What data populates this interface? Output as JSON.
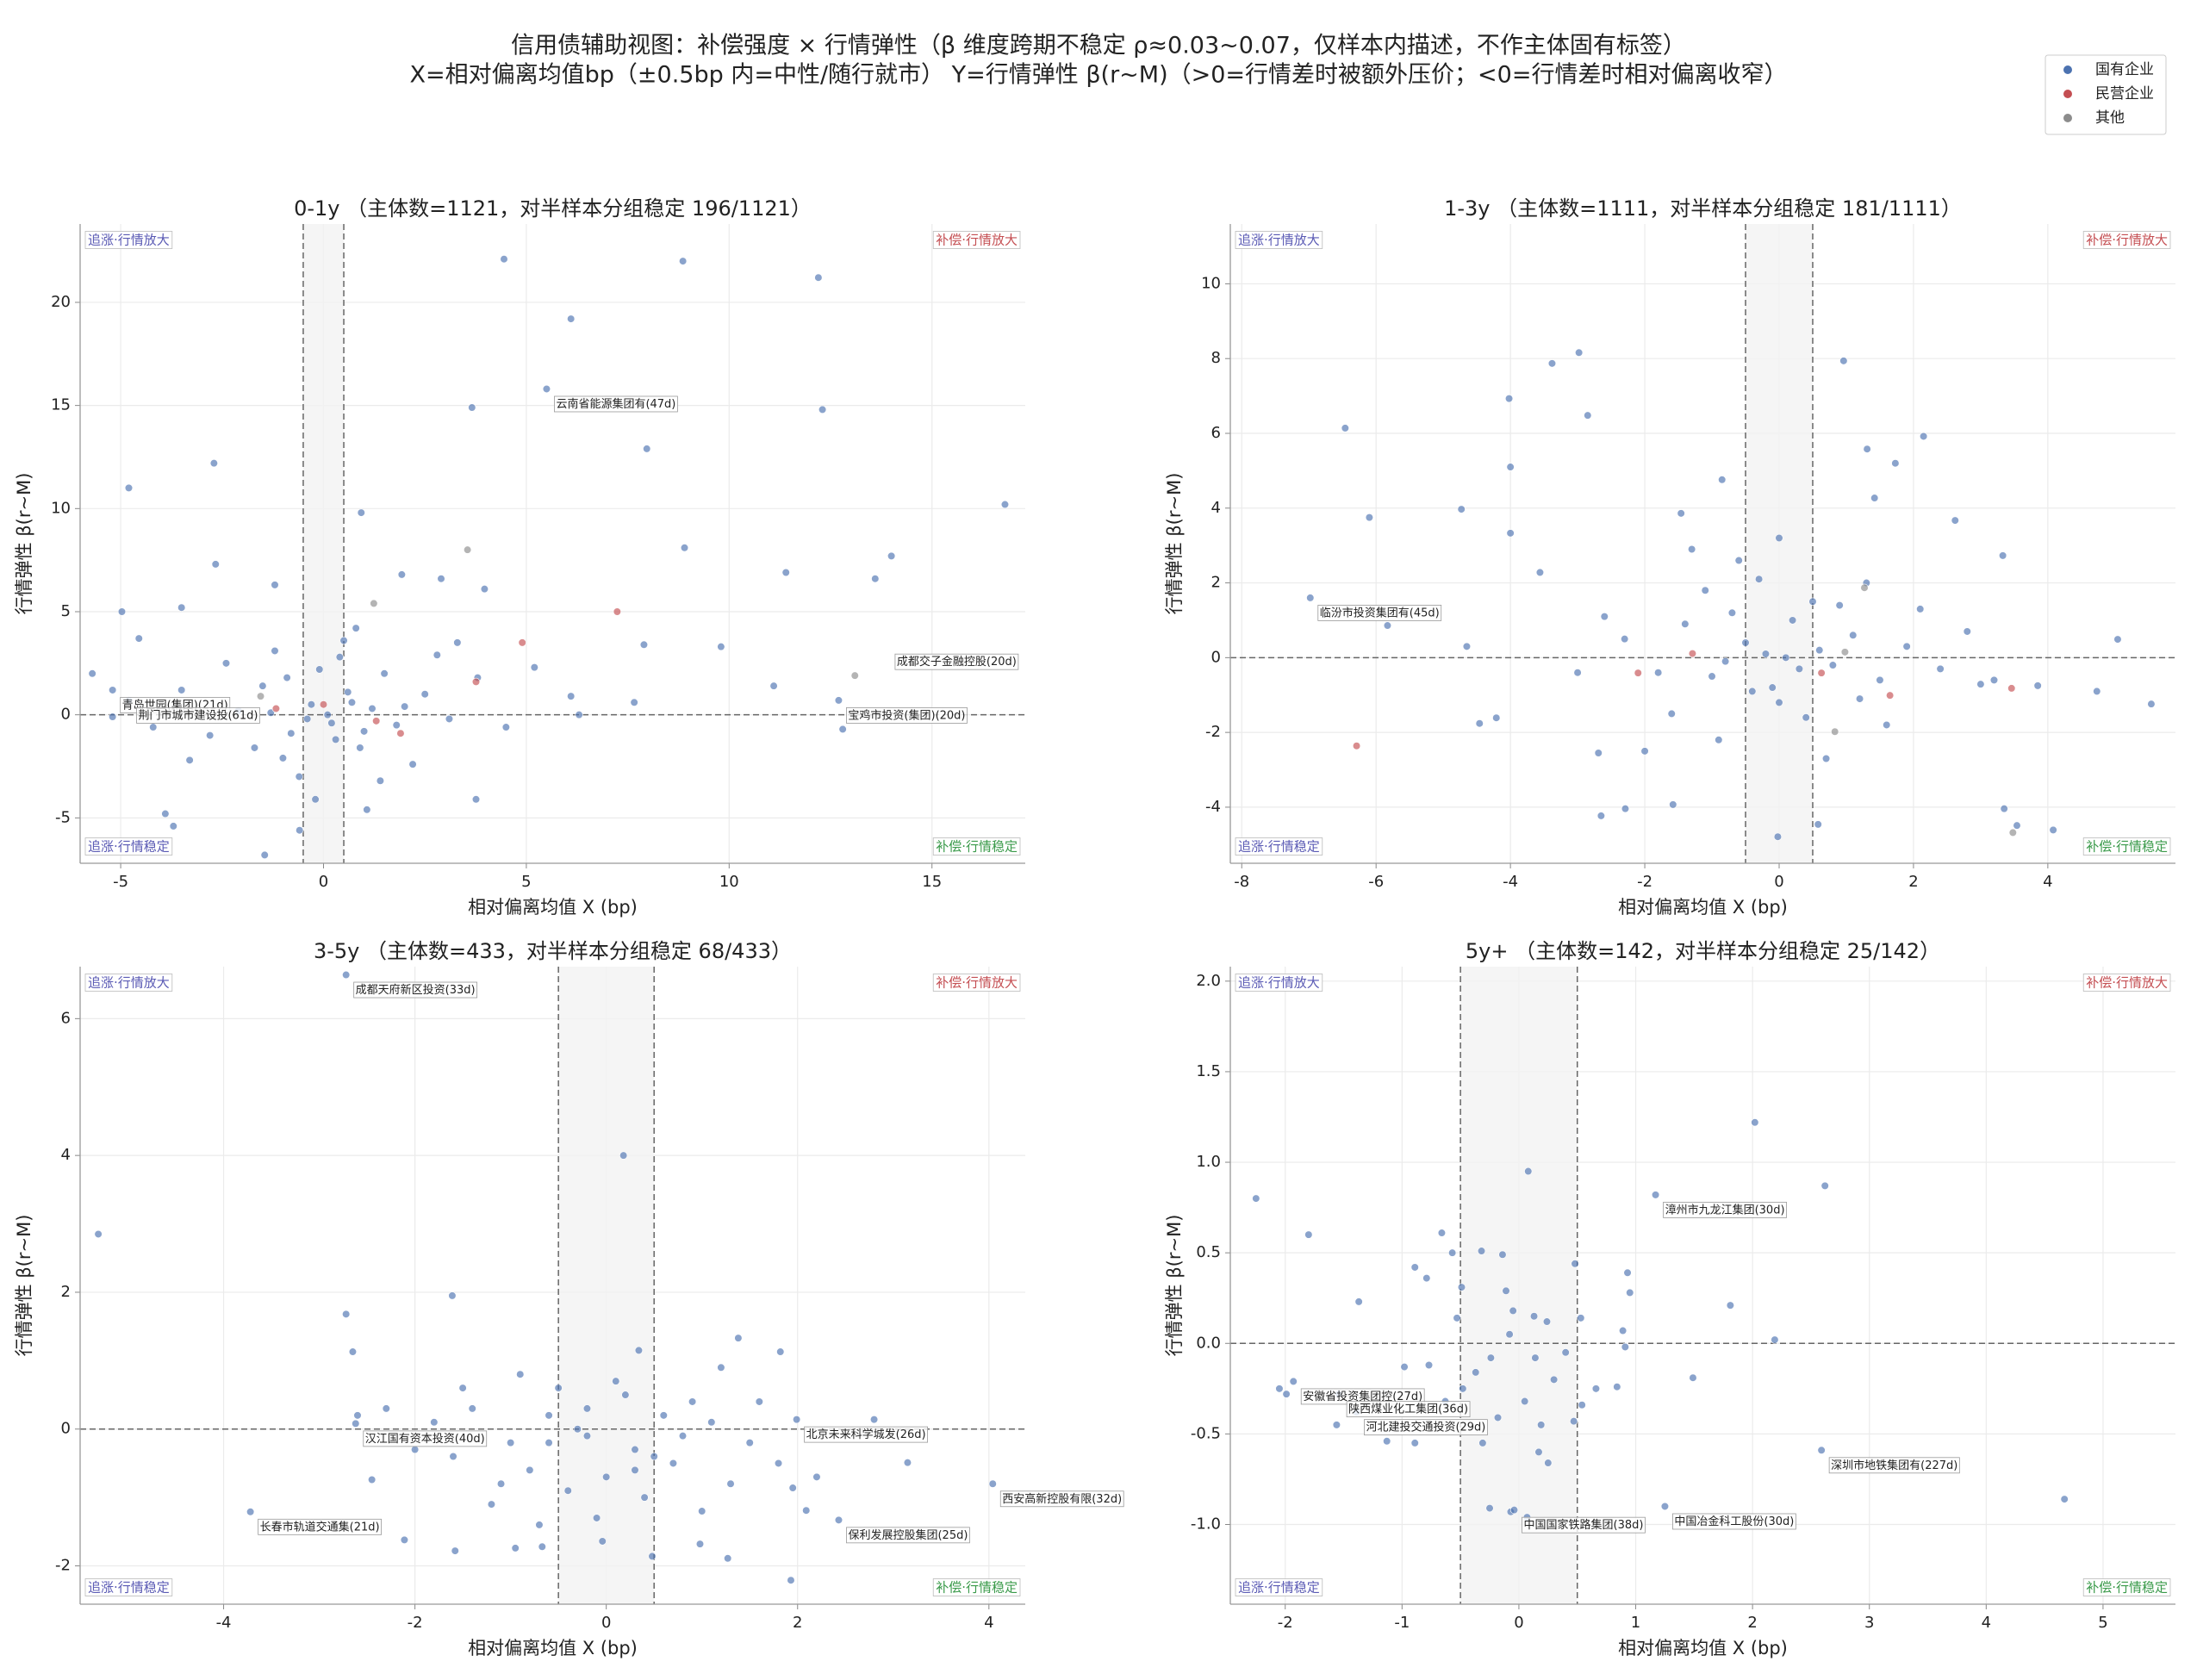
{
  "title": [
    "信用债辅助视图：补偿强度 × 行情弹性（β 维度跨期不稳定 ρ≈0.03~0.07，仅样本内描述，不作主体固有标签）",
    "X=相对偏离均值bp（±0.5bp 内=中性/随行就市） Y=行情弹性 β(r~M)（>0=行情差时被额外压价；<0=行情差时相对偏离收窄）"
  ],
  "legend": "upper right",
  "chart_data": [
    {
      "type": "scatter",
      "title": "0-1y （主体数=1121，对半样本分组稳定 196/1121）",
      "xlabel": "相对偏离均值 X (bp)",
      "ylabel": "行情弹性 β(r~M)",
      "xlim": [
        -6,
        17.3
      ],
      "ylim": [
        -7.2,
        23.8
      ],
      "xticks": [
        -5,
        0,
        5,
        10,
        15
      ],
      "yticks": [
        -5,
        0,
        5,
        10,
        15,
        20
      ],
      "grid": true,
      "neutral_band": [
        -0.5,
        0.5
      ],
      "hline": 0,
      "quadrant_labels": {
        "top_left": {
          "text": "追涨·行情放大",
          "color": "#5a5ab4"
        },
        "top_right": {
          "text": "补偿·行情放大",
          "color": "#c44e52"
        },
        "bottom_left": {
          "text": "追涨·行情稳定",
          "color": "#5a5ab4"
        },
        "bottom_right": {
          "text": "补偿·行情稳定",
          "color": "#3a9a4a"
        }
      },
      "series": [
        {
          "name": "国有企业",
          "color": "#4c72b0",
          "x": [
            4.45,
            8.86,
            12.2,
            6.1,
            12.3,
            3.66,
            7.97,
            -2.7,
            -4.8,
            16.8,
            0.93,
            8.9,
            14.0,
            13.6,
            11.4,
            -2.66,
            -1.2,
            2.9,
            -4.97,
            9.8,
            7.9,
            -3.5,
            -4.55,
            -5.7,
            -5.2,
            -3.3,
            -3.9,
            -3.7,
            -1.45,
            -0.59,
            1.07,
            3.76,
            6.3,
            7.66,
            6.1,
            11.1,
            12.8,
            1.93,
            3.97,
            5.5,
            12.7,
            -5.2,
            -4.8,
            -0.3,
            0.2,
            0.6,
            -0.8,
            1.2,
            -1.5,
            0.9,
            -0.1,
            1.8,
            -2.1,
            2.5,
            -1.0,
            0.4,
            3.1,
            -2.8,
            1.5,
            -0.6,
            2.2,
            0.1,
            -0.4,
            0.7,
            -1.3,
            1.0,
            -2.4,
            3.8,
            4.5,
            -3.5,
            0.3,
            -0.9,
            2.8,
            1.4,
            -1.7,
            0.5,
            -0.2,
            3.3,
            5.2,
            -4.2,
            0.8,
            -1.2,
            2.0
          ],
          "values": [
            22.1,
            22.0,
            21.2,
            19.2,
            14.8,
            14.9,
            12.9,
            12.2,
            11.0,
            10.2,
            9.8,
            8.1,
            7.7,
            6.6,
            6.9,
            7.3,
            6.3,
            6.6,
            5.0,
            3.3,
            3.4,
            5.2,
            3.7,
            2.0,
            -0.1,
            -2.2,
            -4.8,
            -5.4,
            -6.8,
            -5.6,
            -4.6,
            -4.1,
            0,
            0.6,
            0.9,
            1.4,
            -0.7,
            6.8,
            6.1,
            15.8,
            0.7,
            1.2,
            0.7,
            0.5,
            -0.4,
            1.1,
            -0.9,
            0.3,
            1.4,
            -1.6,
            2.2,
            -0.5,
            0.2,
            1.0,
            -2.1,
            2.8,
            -0.2,
            -1.0,
            2.0,
            -3.0,
            -2.4,
            0.0,
            -0.2,
            0.6,
            0.1,
            -0.8,
            2.5,
            1.8,
            -0.6,
            1.2,
            -1.2,
            1.8,
            2.9,
            -3.2,
            -1.6,
            3.6,
            -4.1,
            3.5,
            2.3,
            -0.6,
            4.2,
            3.1,
            0.4
          ]
        },
        {
          "name": "民营企业",
          "color": "#c44e52",
          "x": [
            7.24,
            4.9,
            3.76,
            0,
            1.9,
            1.3,
            -1.17
          ],
          "values": [
            5.0,
            3.5,
            1.6,
            0.5,
            -0.9,
            -0.3,
            0.3
          ]
        },
        {
          "name": "其他",
          "color": "#8c8c8c",
          "x": [
            13.1,
            3.55,
            -1.55,
            1.24
          ],
          "values": [
            1.9,
            8.0,
            0.9,
            5.4
          ]
        }
      ],
      "annotations": [
        {
          "text": "云南省能源集团有(47d)",
          "x": 5.5,
          "y": 15.8
        },
        {
          "text": "成都交子金融控股(20d)",
          "x": 13.9,
          "y": 3.3
        },
        {
          "text": "宝鸡市投资(集团)(20d)",
          "x": 12.7,
          "y": 0.7
        },
        {
          "text": "青岛世园(集团)(21d)",
          "x": -5.2,
          "y": 1.2
        },
        {
          "text": "荆门市城市建设投(61d)",
          "x": -4.8,
          "y": 0.7
        }
      ]
    },
    {
      "type": "scatter",
      "title": "1-3y （主体数=1111，对半样本分组稳定 181/1111）",
      "xlabel": "相对偏离均值 X (bp)",
      "ylabel": "行情弹性 β(r~M)",
      "xlim": [
        -8.17,
        5.9
      ],
      "ylim": [
        -5.5,
        11.6
      ],
      "xticks": [
        -8,
        -6,
        -4,
        -2,
        0,
        2,
        4
      ],
      "yticks": [
        -4,
        -2,
        0,
        2,
        4,
        6,
        8,
        10
      ],
      "grid": true,
      "neutral_band": [
        -0.5,
        0.5
      ],
      "hline": 0,
      "quadrant_labels": {
        "top_left": {
          "text": "追涨·行情放大",
          "color": "#5a5ab4"
        },
        "top_right": {
          "text": "补偿·行情放大",
          "color": "#c44e52"
        },
        "bottom_left": {
          "text": "追涨·行情稳定",
          "color": "#5a5ab4"
        },
        "bottom_right": {
          "text": "补偿·行情稳定",
          "color": "#3a9a4a"
        }
      },
      "series": [
        {
          "name": "国有企业",
          "color": "#4c72b0",
          "x": [
            -6.46,
            -6.1,
            -2.98,
            -3.38,
            -2.85,
            -4.02,
            -4.0,
            -4.0,
            -4.73,
            0.96,
            1.31,
            2.15,
            1.73,
            2.62,
            3.33,
            5.04,
            4.73,
            5.54,
            3.35,
            3.54,
            4.08,
            0.58,
            -0.02,
            -2.65,
            -2.29,
            -1.58,
            -2.69,
            -4.21,
            -4.46,
            -4.65,
            -5.83,
            -3.56,
            3.0,
            3.85,
            1.42,
            -0.85,
            -1.46,
            -6.98,
            -0.2,
            0.3,
            -0.5,
            0.6,
            -1.0,
            1.1,
            -0.1,
            0.8,
            -1.4,
            1.5,
            -0.7,
            0.2,
            -1.8,
            1.9,
            0.0,
            -0.4,
            0.5,
            -1.1,
            1.2,
            -2.3,
            2.4,
            -0.3,
            0.9,
            -1.6,
            1.6,
            -2.6,
            2.8,
            -0.9,
            0.4,
            -0.6,
            1.3,
            -1.3,
            0.1,
            -2.0,
            2.1,
            -0.8,
            0.7,
            -3.0,
            3.2,
            0.0
          ],
          "values": [
            6.14,
            3.75,
            8.16,
            7.87,
            6.48,
            6.93,
            5.1,
            3.33,
            3.97,
            7.94,
            5.58,
            5.92,
            5.2,
            3.67,
            2.73,
            0.49,
            -0.9,
            -1.24,
            -4.04,
            -4.49,
            -4.61,
            -4.46,
            -4.79,
            -4.23,
            -4.04,
            -3.93,
            -2.55,
            -1.61,
            -1.76,
            0.3,
            0.86,
            2.28,
            -0.71,
            -0.75,
            4.27,
            4.76,
            3.86,
            1.6,
            0.1,
            -0.3,
            0.4,
            0.2,
            -0.5,
            0.6,
            -0.8,
            -0.2,
            0.9,
            -0.6,
            1.2,
            1.0,
            -0.4,
            0.3,
            -1.2,
            -0.9,
            1.5,
            1.8,
            -1.1,
            0.5,
            -0.3,
            2.1,
            1.4,
            -1.5,
            -1.8,
            1.1,
            0.7,
            -2.2,
            -1.6,
            2.6,
            2.0,
            2.9,
            0.0,
            -2.5,
            1.3,
            -0.1,
            -2.7,
            -0.4,
            -0.6,
            3.2
          ]
        },
        {
          "name": "民营企业",
          "color": "#c44e52",
          "x": [
            -6.29,
            3.46,
            -2.1,
            -1.29,
            1.65,
            0.63
          ],
          "values": [
            -2.36,
            -0.82,
            -0.41,
            0.11,
            -1.01,
            -0.41
          ]
        },
        {
          "name": "其他",
          "color": "#8c8c8c",
          "x": [
            3.48,
            1.27,
            0.83,
            0.98
          ],
          "values": [
            -4.68,
            1.87,
            -1.98,
            0.15
          ]
        }
      ],
      "annotations": [
        {
          "text": "临汾市投资集团有(45d)",
          "x": -6.98,
          "y": 1.6
        }
      ]
    },
    {
      "type": "scatter",
      "title": "3-5y （主体数=433，对半样本分组稳定 68/433）",
      "xlabel": "相对偏离均值 X (bp)",
      "ylabel": "行情弹性 β(r~M)",
      "xlim": [
        -5.5,
        4.38
      ],
      "ylim": [
        -2.56,
        6.76
      ],
      "xticks": [
        -4,
        -2,
        0,
        2,
        4
      ],
      "yticks": [
        -2,
        0,
        2,
        4,
        6
      ],
      "grid": true,
      "neutral_band": [
        -0.5,
        0.5
      ],
      "hline": 0,
      "quadrant_labels": {
        "top_left": {
          "text": "追涨·行情放大",
          "color": "#5a5ab4"
        },
        "top_right": {
          "text": "补偿·行情放大",
          "color": "#c44e52"
        },
        "bottom_left": {
          "text": "追涨·行情稳定",
          "color": "#5a5ab4"
        },
        "bottom_right": {
          "text": "补偿·行情稳定",
          "color": "#3a9a4a"
        }
      },
      "series": [
        {
          "name": "国有企业",
          "color": "#4c72b0",
          "x": [
            -5.31,
            0.18,
            -1.61,
            -2.72,
            -2.65,
            -2.45,
            -2.11,
            -1.58,
            -0.95,
            -0.67,
            -0.04,
            0.48,
            0.98,
            1.27,
            1.93,
            1.95,
            1.82,
            1.38,
            0.34,
            2.8,
            3.15,
            2.09,
            -2.72,
            -2.62,
            1.99,
            4.04,
            -3.72,
            2.43,
            -0.2,
            0.3,
            -0.6,
            0.7,
            -1.0,
            1.1,
            -1.4,
            0.0,
            0.5,
            -0.4,
            1.5,
            -1.8,
            0.9,
            -0.8,
            -1.2,
            0.2,
            1.3,
            -2.0,
            -0.1,
            0.6,
            -0.5,
            1.8,
            -1.6,
            0.4,
            -0.9,
            1.0,
            -2.3,
            -0.3,
            0.8,
            -1.1,
            1.6,
            -0.7,
            0.1,
            -1.5,
            2.2,
            -0.6,
            1.2,
            -2.6,
            0.3,
            -0.2
          ],
          "values": [
            2.85,
            4.0,
            1.95,
            1.68,
            1.13,
            -0.74,
            -1.62,
            -1.78,
            -1.74,
            -1.72,
            -1.64,
            -1.86,
            -1.68,
            -1.89,
            -2.21,
            -0.86,
            1.13,
            1.33,
            1.15,
            0.14,
            -0.49,
            -1.19,
            6.64,
            0.08,
            0.14,
            -0.8,
            -1.21,
            -1.33,
            -0.1,
            -0.3,
            0.2,
            -0.5,
            -0.2,
            0.1,
            0.3,
            -0.7,
            -0.4,
            -0.9,
            -0.2,
            0.1,
            0.4,
            -0.6,
            -1.1,
            0.5,
            -0.8,
            -0.3,
            -1.3,
            0.2,
            0.6,
            -0.5,
            -0.4,
            -1.0,
            0.8,
            -1.2,
            0.3,
            0.0,
            -0.1,
            -0.8,
            0.4,
            -1.4,
            0.7,
            0.6,
            -0.7,
            -0.2,
            0.9,
            0.2,
            -0.6,
            0.3
          ]
        }
      ],
      "annotations": [
        {
          "text": "成都天府新区投资(33d)",
          "x": -2.72,
          "y": 6.64
        },
        {
          "text": "汉江国有资本投资(40d)",
          "x": -2.62,
          "y": 0.08
        },
        {
          "text": "北京未来科学城发(26d)",
          "x": 1.99,
          "y": 0.14
        },
        {
          "text": "西安高新控股有限(32d)",
          "x": 4.04,
          "y": -0.8
        },
        {
          "text": "长春市轨道交通集(21d)",
          "x": -3.72,
          "y": -1.21
        },
        {
          "text": "保利发展控股集团(25d)",
          "x": 2.43,
          "y": -1.33
        }
      ]
    },
    {
      "type": "scatter",
      "title": "5y+ （主体数=142，对半样本分组稳定 25/142）",
      "xlabel": "相对偏离均值 X (bp)",
      "ylabel": "行情弹性 β(r~M)",
      "xlim": [
        -2.47,
        5.62
      ],
      "ylim": [
        -1.44,
        2.08
      ],
      "xticks": [
        -2,
        -1,
        0,
        1,
        2,
        3,
        4,
        5
      ],
      "yticks": [
        {
          "value": -1,
          "label": "-1.0"
        },
        -0.5,
        {
          "value": 0,
          "label": "0.0"
        },
        0.5,
        {
          "value": 1,
          "label": "1.0"
        },
        1.5,
        {
          "value": 2,
          "label": "2.0"
        }
      ],
      "grid": true,
      "neutral_band": [
        -0.5,
        0.5
      ],
      "hline": 0,
      "quadrant_labels": {
        "top_left": {
          "text": "追涨·行情放大",
          "color": "#5a5ab4"
        },
        "top_right": {
          "text": "补偿·行情放大",
          "color": "#c44e52"
        },
        "bottom_left": {
          "text": "追涨·行情稳定",
          "color": "#5a5ab4"
        },
        "bottom_right": {
          "text": "补偿·行情稳定",
          "color": "#3a9a4a"
        }
      },
      "series": [
        {
          "name": "国有企业",
          "color": "#4c72b0",
          "x": [
            -2.25,
            -1.8,
            -1.37,
            2.02,
            2.62,
            0.08,
            4.67,
            1.81,
            2.19,
            1.49,
            -2.05,
            -1.99,
            -1.56,
            -1.13,
            -0.25,
            -0.07,
            0.07,
            0.48,
            0.53,
            0.89,
            0.93,
            0.95,
            0.84,
            0.54,
            0.47,
            0.25,
            0.17,
            -0.66,
            -0.57,
            -0.32,
            -0.14,
            -0.89,
            -0.79,
            -0.49,
            -0.53,
            -0.11,
            -0.05,
            0.13,
            0.24,
            -0.24,
            -0.37,
            -0.48,
            -0.77,
            -0.98,
            -0.63,
            -0.89,
            0.14,
            0.3,
            0.4,
            0.66,
            0.91,
            -0.08,
            0.05,
            -0.18,
            -0.31,
            0.19,
            1.17,
            -1.93,
            -1.54,
            -1.39,
            2.59,
            -0.04,
            1.25
          ],
          "values": [
            0.8,
            0.6,
            0.23,
            1.22,
            0.87,
            0.95,
            -0.86,
            0.21,
            0.02,
            -0.19,
            -0.25,
            -0.28,
            -0.45,
            -0.54,
            -0.91,
            -0.93,
            -0.96,
            0.44,
            0.14,
            0.07,
            0.39,
            0.28,
            -0.24,
            -0.34,
            -0.43,
            -0.66,
            -0.6,
            0.61,
            0.5,
            0.51,
            0.49,
            0.42,
            0.36,
            0.31,
            0.14,
            0.29,
            0.18,
            0.15,
            0.12,
            -0.08,
            -0.16,
            -0.25,
            -0.12,
            -0.13,
            -0.32,
            -0.55,
            -0.08,
            -0.2,
            -0.05,
            -0.25,
            -0.02,
            0.05,
            -0.32,
            -0.41,
            -0.55,
            -0.45,
            0.82,
            -0.21,
            -0.28,
            -0.38,
            -0.59,
            -0.92,
            -0.9
          ]
        }
      ],
      "annotations": [
        {
          "text": "漳州市九龙江集团(30d)",
          "x": 1.17,
          "y": 0.82
        },
        {
          "text": "安徽省投资集团控(27d)",
          "x": -1.93,
          "y": -0.21
        },
        {
          "text": "陕西煤业化工集团(36d)",
          "x": -1.54,
          "y": -0.28
        },
        {
          "text": "河北建投交通投资(29d)",
          "x": -1.39,
          "y": -0.38
        },
        {
          "text": "深圳市地铁集团有(227d)",
          "x": 2.59,
          "y": -0.59
        },
        {
          "text": "中国国家铁路集团(38d)",
          "x": -0.04,
          "y": -0.92
        },
        {
          "text": "中国冶金科工股份(30d)",
          "x": 1.25,
          "y": -0.9
        }
      ]
    }
  ]
}
